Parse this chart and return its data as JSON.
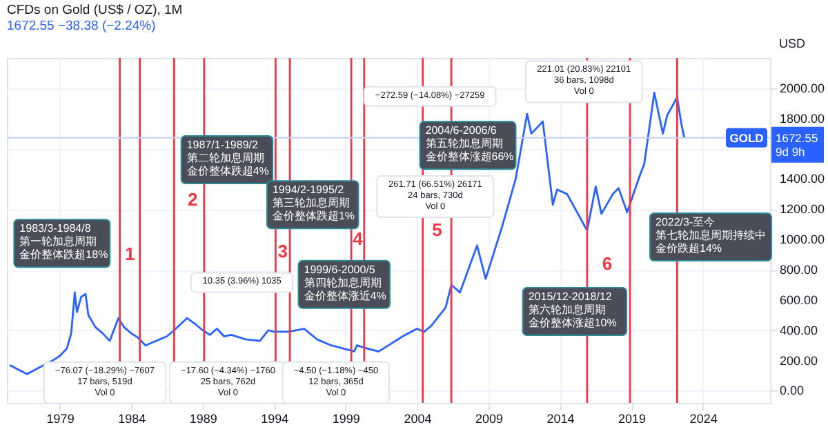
{
  "chart_data": {
    "type": "line",
    "title": "CFDs on Gold (US$ / OZ), 1M",
    "subtitle": "1672.55  −38.38 (−2.24%)",
    "ylabel": "USD",
    "series": [
      {
        "type": "line",
        "color": "#2962ff",
        "x": [
          1975.5,
          1976.7,
          1977.5,
          1978.5,
          1979.0,
          1979.5,
          1979.8,
          1980.05,
          1980.2,
          1980.5,
          1980.8,
          1981.0,
          1981.5,
          1982.0,
          1982.5,
          1983.1,
          1983.5,
          1984.0,
          1984.5,
          1985.0,
          1985.5,
          1986.0,
          1986.5,
          1987.0,
          1987.9,
          1988.5,
          1989.0,
          1989.5,
          1990.0,
          1990.5,
          1991.0,
          1992.0,
          1993.0,
          1993.6,
          1994.0,
          1995.0,
          1996.1,
          1997.0,
          1998.0,
          1999.6,
          1999.8,
          2000.5,
          2001.3,
          2002.0,
          2003.0,
          2004.0,
          2004.5,
          2005.0,
          2006.0,
          2006.4,
          2007.0,
          2008.2,
          2008.8,
          2009.5,
          2010.0,
          2010.9,
          2011.7,
          2012.0,
          2012.8,
          2013.5,
          2013.8,
          2014.5,
          2015.9,
          2016.5,
          2016.9,
          2017.7,
          2018.1,
          2018.7,
          2019.5,
          2019.9,
          2020.6,
          2021.2,
          2021.5,
          2022.2,
          2022.5,
          2022.7
        ],
        "values": [
          170,
          110,
          150,
          200,
          230,
          280,
          380,
          650,
          520,
          620,
          640,
          500,
          420,
          380,
          330,
          480,
          420,
          380,
          350,
          300,
          320,
          340,
          360,
          400,
          480,
          440,
          400,
          370,
          410,
          360,
          370,
          340,
          330,
          400,
          390,
          390,
          410,
          340,
          300,
          260,
          300,
          280,
          260,
          300,
          360,
          410,
          390,
          430,
          550,
          700,
          650,
          960,
          740,
          950,
          1100,
          1400,
          1830,
          1700,
          1780,
          1230,
          1330,
          1300,
          1060,
          1350,
          1170,
          1300,
          1340,
          1180,
          1400,
          1500,
          1970,
          1700,
          1820,
          1940,
          1760,
          1672.55
        ]
      }
    ],
    "xlim": [
      1975.3,
      2028.7
    ],
    "xticks": [
      1979,
      1984,
      1989,
      1994,
      1999,
      2004,
      2009,
      2014,
      2019,
      2024
    ],
    "ylim": [
      -80,
      2200
    ],
    "yticks": [
      {
        "value": 0,
        "label": "0.00"
      },
      {
        "value": 200,
        "label": "200.00"
      },
      {
        "value": 400,
        "label": "400.00"
      },
      {
        "value": 600,
        "label": "600.00"
      },
      {
        "value": 800,
        "label": "800.00"
      },
      {
        "value": 1000,
        "label": "1000.00"
      },
      {
        "value": 1200,
        "label": "1200.00"
      },
      {
        "value": 1400,
        "label": "1400.00"
      },
      {
        "value": 1600,
        "label": null
      },
      {
        "value": 1800,
        "label": "1800.00"
      },
      {
        "value": 2000,
        "label": "2000.00"
      }
    ],
    "grid": true,
    "line_style": "solid",
    "ref_lines": [
      {
        "axis": "x",
        "value": 1983.2,
        "color": "#f23645"
      },
      {
        "axis": "x",
        "value": 1984.6,
        "color": "#f23645"
      },
      {
        "axis": "x",
        "value": 1987.0,
        "color": "#f23645"
      },
      {
        "axis": "x",
        "value": 1989.1,
        "color": "#f23645"
      },
      {
        "axis": "x",
        "value": 1994.1,
        "color": "#f23645"
      },
      {
        "axis": "x",
        "value": 1995.1,
        "color": "#f23645"
      },
      {
        "axis": "x",
        "value": 1999.4,
        "color": "#f23645"
      },
      {
        "axis": "x",
        "value": 2000.3,
        "color": "#f23645"
      },
      {
        "axis": "x",
        "value": 2004.4,
        "color": "#f23645"
      },
      {
        "axis": "x",
        "value": 2006.4,
        "color": "#f23645"
      },
      {
        "axis": "x",
        "value": 2015.9,
        "color": "#f23645"
      },
      {
        "axis": "x",
        "value": 2018.9,
        "color": "#f23645"
      },
      {
        "axis": "x",
        "value": 2022.2,
        "color": "#f23645"
      },
      {
        "axis": "y",
        "value": 1672.55,
        "label": "GOLD",
        "color": "#c3d0f7"
      }
    ],
    "annotations": [
      "1",
      "2",
      "3",
      "4",
      "5",
      "6",
      "1983/3-1984/8",
      "第一轮加息周期",
      "金价整体跌超18%",
      "1987/1-1989/2",
      "第二轮加息周期",
      "金价整体跌超4%",
      "1994/2-1995/2",
      "第三轮加息周期",
      "金价整体跌超1%",
      "1999/6-2000/5",
      "第四轮加息周期",
      "金价整体涨近4%",
      "2004/6-2006/6",
      "第五轮加息周期",
      "金价整体涨超66%",
      "2015/12-2018/12",
      "第六轮加息周期",
      "金价整体涨超10%",
      "2022/3-至今",
      "第七轮加息周期持续中",
      "金价跌超14%",
      "−76.07 (−18.29%) −7607",
      "17 bars, 519d",
      "Vol 0",
      "−17.60 (−4.34%) −1760",
      "25 bars, 762d",
      "Vol 0",
      "−4.50 (−1.18%) −450",
      "12 bars, 365d",
      "Vol 0",
      "10.35 (3.96%) 1035",
      "261.71 (66.51%) 26171",
      "24 bars, 730d",
      "Vol 0",
      "221.01 (20.83%) 22101",
      "36 bars, 1098d",
      "Vol 0",
      "−272.59 (−14.08%) −27259",
      "1672.55",
      "9d 9h"
    ]
  }
}
